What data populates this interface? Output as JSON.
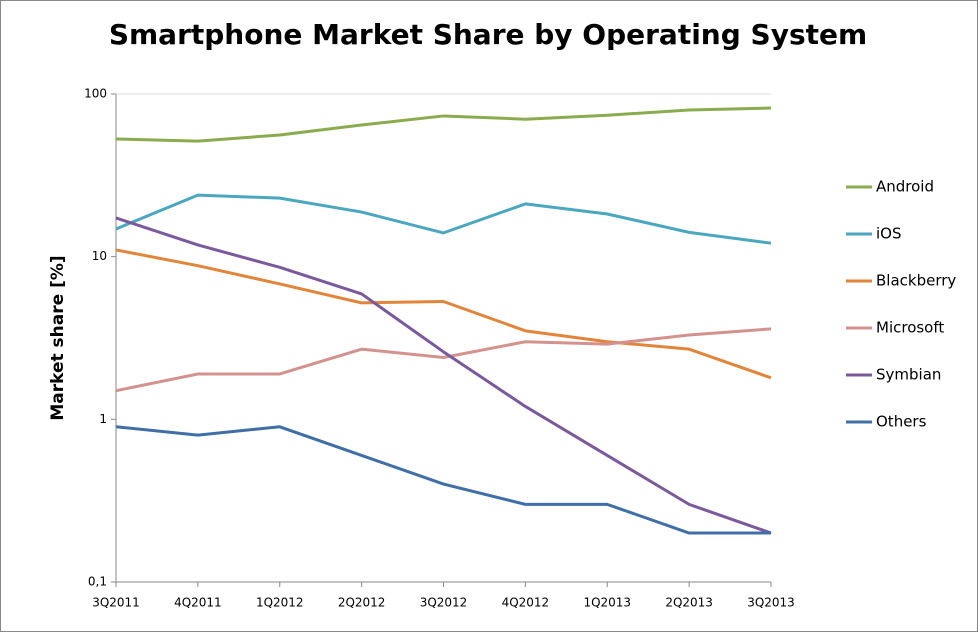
{
  "chart_data": {
    "type": "line",
    "title": "Smartphone Market Share by Operating System",
    "y_label": "Market share [%]",
    "categories": [
      "3Q2011",
      "4Q2011",
      "1Q2012",
      "2Q2012",
      "3Q2012",
      "4Q2012",
      "1Q2013",
      "2Q2013",
      "3Q2013"
    ],
    "series": [
      {
        "name": "Android",
        "color": "#8aac4e",
        "values": [
          52.9,
          51.3,
          56,
          64.5,
          73.3,
          70,
          74,
          79.7,
          82
        ]
      },
      {
        "name": "iOS",
        "color": "#4aa7bf",
        "values": [
          14.8,
          23.9,
          22.9,
          18.8,
          14,
          21.1,
          18.3,
          14.1,
          12.1
        ]
      },
      {
        "name": "Blackberry",
        "color": "#e2853a",
        "values": [
          11,
          8.8,
          6.8,
          5.2,
          5.3,
          3.5,
          3,
          2.7,
          1.8
        ]
      },
      {
        "name": "Microsoft",
        "color": "#d4928f",
        "values": [
          1.5,
          1.9,
          1.9,
          2.7,
          2.4,
          3,
          2.9,
          3.3,
          3.6
        ]
      },
      {
        "name": "Symbian",
        "color": "#7a5a9c",
        "values": [
          17.3,
          11.8,
          8.6,
          5.9,
          2.6,
          1.2,
          0.6,
          0.3,
          0.2
        ]
      },
      {
        "name": "Others",
        "color": "#3f6fa6",
        "values": [
          0.9,
          0.8,
          0.9,
          0.6,
          0.4,
          0.3,
          0.3,
          0.2,
          0.2
        ]
      }
    ],
    "ylim": [
      0.1,
      100
    ],
    "yticks": [
      {
        "value": 0.1,
        "label": "0,1"
      },
      1,
      10,
      100
    ],
    "y_log": true,
    "grid": false,
    "legend": "right"
  }
}
